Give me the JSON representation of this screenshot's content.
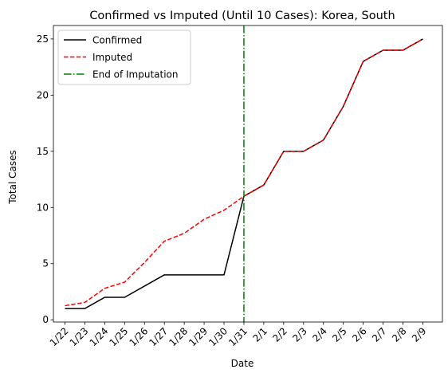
{
  "chart_data": {
    "type": "line",
    "title": "Confirmed vs Imputed (Until 10 Cases): Korea, South",
    "xlabel": "Date",
    "ylabel": "Total Cases",
    "categories": [
      "1/22",
      "1/23",
      "1/24",
      "1/25",
      "1/26",
      "1/27",
      "1/28",
      "1/29",
      "1/30",
      "1/31",
      "2/1",
      "2/2",
      "2/3",
      "2/4",
      "2/5",
      "2/6",
      "2/7",
      "2/8",
      "2/9"
    ],
    "y_ticks": [
      0,
      5,
      10,
      15,
      20,
      25
    ],
    "ylim": [
      -0.2,
      26.2
    ],
    "grid": false,
    "legend_position": "upper-left",
    "series": [
      {
        "name": "Confirmed",
        "color": "#000000",
        "style": "solid",
        "values": [
          1,
          1,
          2,
          2,
          3,
          4,
          4,
          4,
          4,
          11,
          12,
          15,
          15,
          16,
          19,
          23,
          24,
          24,
          25
        ]
      },
      {
        "name": "Imputed",
        "color": "#ff0000",
        "style": "dashed",
        "values": [
          1.25,
          1.55,
          2.8,
          3.35,
          5.1,
          7.0,
          7.7,
          8.95,
          9.75,
          11,
          12,
          15,
          15,
          16,
          19,
          23,
          24,
          24,
          25
        ]
      }
    ],
    "vertical_line": {
      "name": "End of Imputation",
      "color": "#008000",
      "style": "dashdot",
      "x": "1/31"
    }
  }
}
